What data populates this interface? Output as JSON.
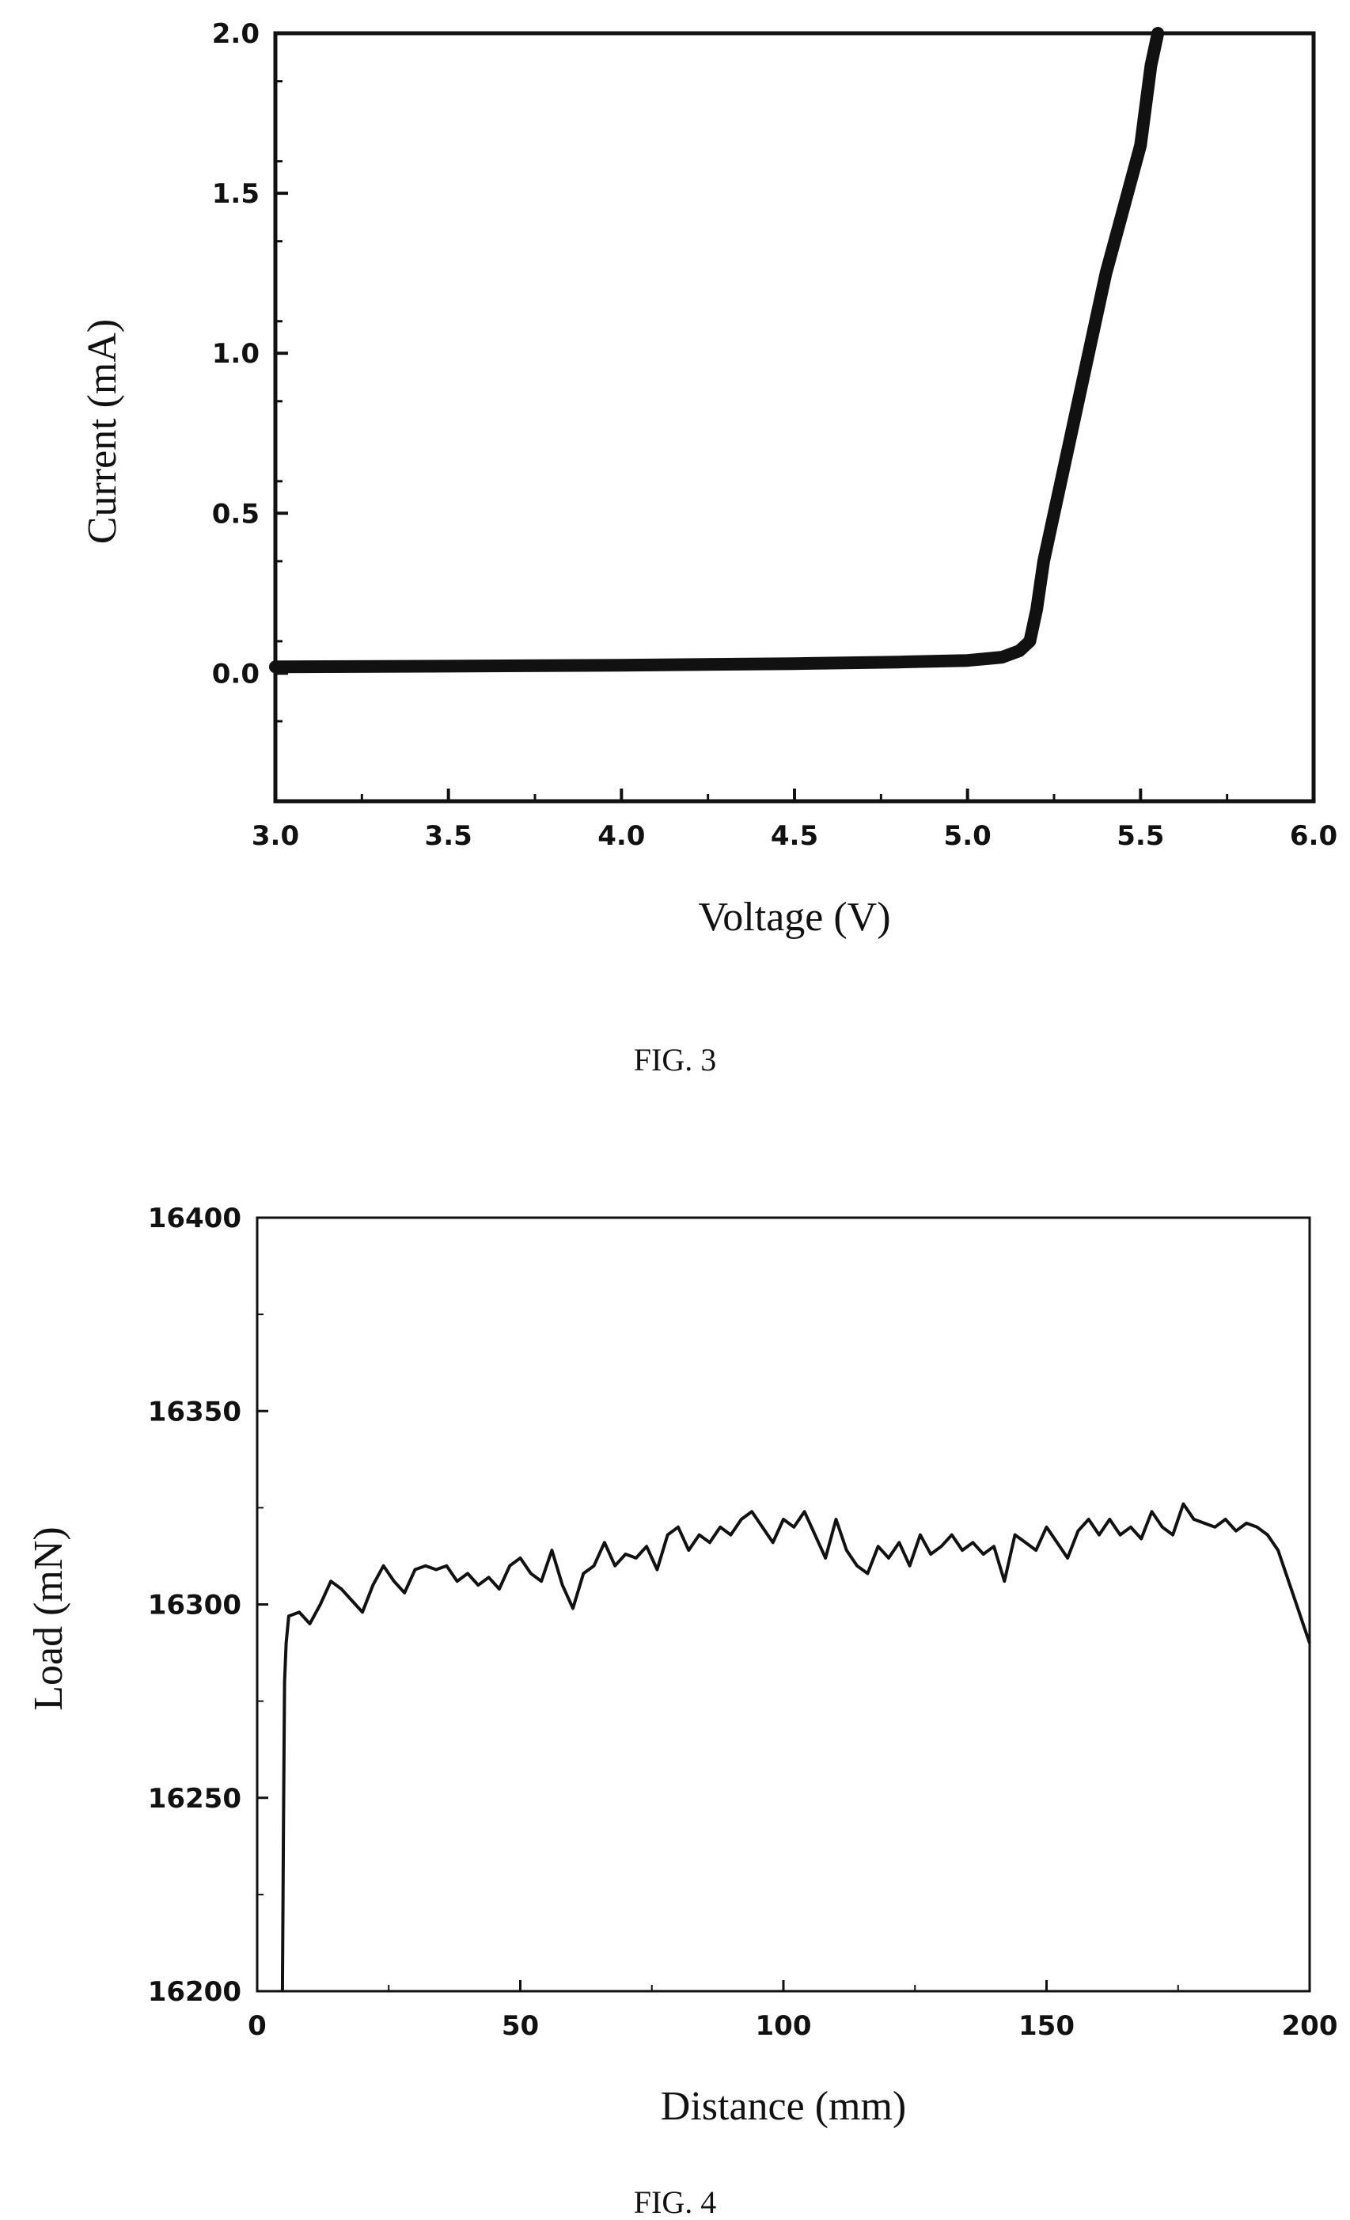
{
  "figures": [
    {
      "caption": "FIG. 3",
      "chart_data": {
        "type": "line",
        "title": "",
        "xlabel": "Voltage (V)",
        "ylabel": "Current (mA)",
        "xlim": [
          3.0,
          6.0
        ],
        "ylim": [
          -0.4,
          2.0
        ],
        "xticks": [
          "3.0",
          "3.5",
          "4.0",
          "4.5",
          "5.0",
          "5.5",
          "6.0"
        ],
        "yticks": [
          "0.0",
          "0.5",
          "1.0",
          "1.5",
          "2.0"
        ],
        "series": [
          {
            "x": [
              3.0,
              3.5,
              4.0,
              4.5,
              4.8,
              5.0,
              5.1,
              5.15,
              5.18,
              5.2,
              5.22,
              5.25,
              5.3,
              5.35,
              5.4,
              5.45,
              5.5,
              5.53,
              5.55
            ],
            "y": [
              0.02,
              0.022,
              0.025,
              0.03,
              0.035,
              0.04,
              0.05,
              0.07,
              0.1,
              0.2,
              0.35,
              0.5,
              0.75,
              1.0,
              1.25,
              1.45,
              1.65,
              1.9,
              2.0
            ]
          }
        ]
      }
    },
    {
      "caption": "FIG. 4",
      "chart_data": {
        "type": "line",
        "title": "",
        "xlabel": "Distance (mm)",
        "ylabel": "Load (mN)",
        "xlim": [
          0,
          200
        ],
        "ylim": [
          16200,
          16400
        ],
        "xticks": [
          "0",
          "50",
          "100",
          "150",
          "200"
        ],
        "yticks": [
          "16200",
          "16250",
          "16300",
          "16350",
          "16400"
        ],
        "series": [
          {
            "x": [
              4.8,
              5.0,
              5.2,
              5.5,
              6,
              8,
              10,
              12,
              14,
              16,
              18,
              20,
              22,
              24,
              26,
              28,
              30,
              32,
              34,
              36,
              38,
              40,
              42,
              44,
              46,
              48,
              50,
              52,
              54,
              56,
              58,
              60,
              62,
              64,
              66,
              68,
              70,
              72,
              74,
              76,
              78,
              80,
              82,
              84,
              86,
              88,
              90,
              92,
              94,
              96,
              98,
              100,
              102,
              104,
              106,
              108,
              110,
              112,
              114,
              116,
              118,
              120,
              122,
              124,
              126,
              128,
              130,
              132,
              134,
              136,
              138,
              140,
              142,
              144,
              146,
              148,
              150,
              152,
              154,
              156,
              158,
              160,
              162,
              164,
              166,
              168,
              170,
              172,
              174,
              176,
              178,
              180,
              182,
              184,
              186,
              188,
              190,
              192,
              194,
              196,
              198,
              199,
              200
            ],
            "y": [
              16200,
              16245,
              16280,
              16290,
              16297,
              16298,
              16295,
              16300,
              16306,
              16304,
              16301,
              16298,
              16305,
              16310,
              16306,
              16303,
              16309,
              16310,
              16309,
              16310,
              16306,
              16308,
              16305,
              16307,
              16304,
              16310,
              16312,
              16308,
              16306,
              16314,
              16305,
              16299,
              16308,
              16310,
              16316,
              16310,
              16313,
              16312,
              16315,
              16309,
              16318,
              16320,
              16314,
              16318,
              16316,
              16320,
              16318,
              16322,
              16324,
              16320,
              16316,
              16322,
              16320,
              16324,
              16318,
              16312,
              16322,
              16314,
              16310,
              16308,
              16315,
              16312,
              16316,
              16310,
              16318,
              16313,
              16315,
              16318,
              16314,
              16316,
              16313,
              16315,
              16306,
              16318,
              16316,
              16314,
              16320,
              16316,
              16312,
              16319,
              16322,
              16318,
              16322,
              16318,
              16320,
              16317,
              16324,
              16320,
              16318,
              16326,
              16322,
              16321,
              16320,
              16322,
              16319,
              16321,
              16320,
              16318,
              16314,
              16306,
              16298,
              16294,
              16290
            ]
          }
        ]
      }
    }
  ]
}
